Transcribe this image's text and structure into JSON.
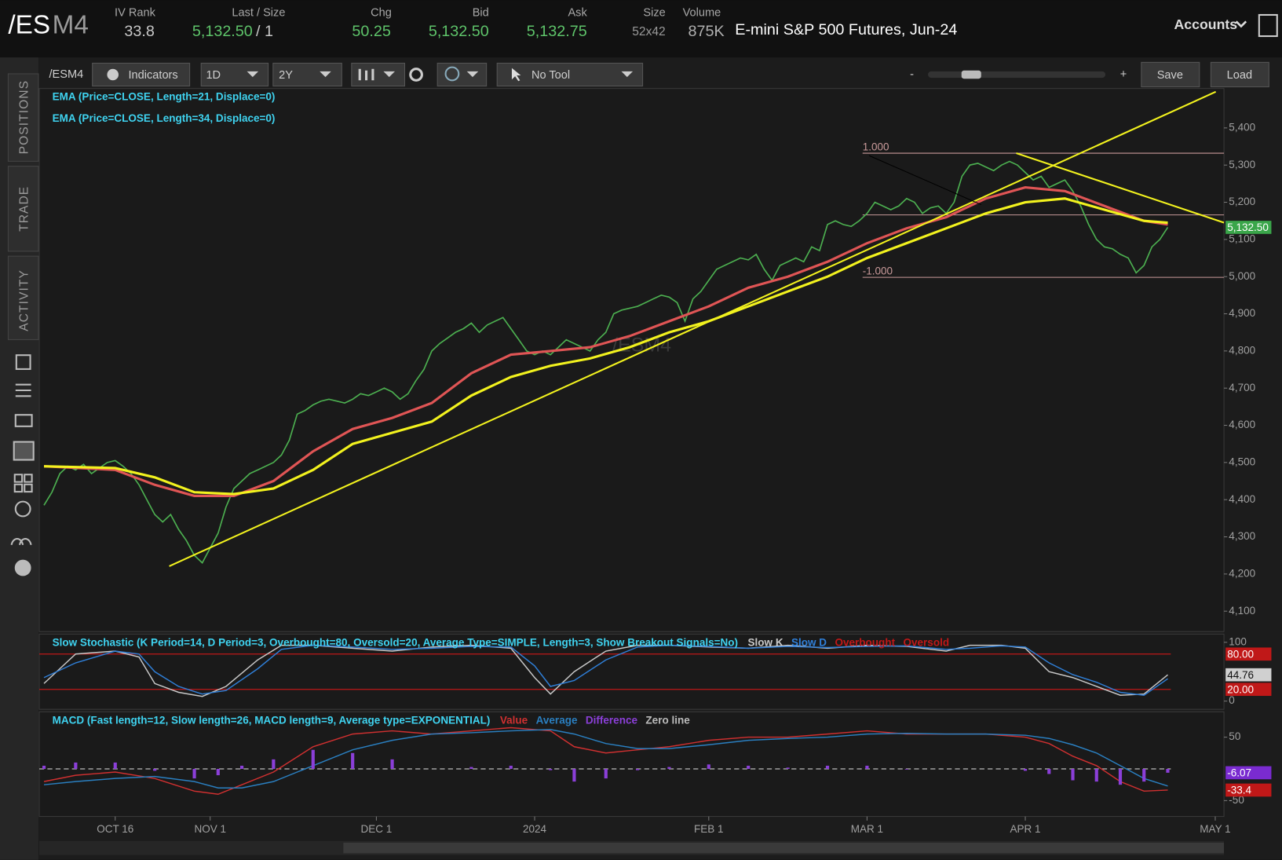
{
  "header": {
    "symbol_root": "/ES",
    "symbol_month": "M4",
    "fields": [
      {
        "label": "IV Rank",
        "value": "33.8"
      },
      {
        "label": "Last / Size",
        "value": "5,132.50",
        "extra": "/ 1"
      },
      {
        "label": "Chg",
        "value": "50.25"
      },
      {
        "label": "Bid",
        "value": "5,132.50"
      },
      {
        "label": "Ask",
        "value": "5,132.75"
      },
      {
        "label": "Size",
        "value": "52x42"
      },
      {
        "label": "Volume",
        "value": "875K"
      }
    ],
    "description": "E-mini S&P 500 Futures, Jun-24",
    "accounts": "Accounts"
  },
  "toolbar": {
    "symbol": "/ESM4",
    "indicators": "Indicators",
    "aggregation": "1D",
    "range": "2Y",
    "tool": "No Tool",
    "zoom_out": "-",
    "zoom_in": "+",
    "save": "Save",
    "load": "Load"
  },
  "side_tabs": [
    "POSITIONS",
    "TRADE",
    "ACTIVITY"
  ],
  "chart_data": [
    {
      "type": "line",
      "watermark": "/ESM4",
      "xlim": [
        -9.6,
        140.1
      ],
      "ylim": [
        4045,
        5506
      ],
      "yticks": [
        {
          "value": 4100,
          "label": "4,100"
        },
        {
          "value": 4200,
          "label": "4,200"
        },
        {
          "value": 4300,
          "label": "4,300"
        },
        {
          "value": 4400,
          "label": "4,400"
        },
        {
          "value": 4500,
          "label": "4,500"
        },
        {
          "value": 4600,
          "label": "4,600"
        },
        {
          "value": 4700,
          "label": "4,700"
        },
        {
          "value": 4800,
          "label": "4,800"
        },
        {
          "value": 4900,
          "label": "4,900"
        },
        {
          "value": 5000,
          "label": "5,000"
        },
        {
          "value": 5100,
          "label": "5,100"
        },
        {
          "value": 5200,
          "label": "5,200"
        },
        {
          "value": 5300,
          "label": "5,300"
        },
        {
          "value": 5400,
          "label": "5,400"
        }
      ],
      "fib": [
        {
          "value": 5332,
          "label": "1.000"
        },
        {
          "value": 5166
        },
        {
          "value": 4998,
          "label": "-1.000"
        }
      ],
      "series": [
        {
          "color": "#4caf50",
          "x": [
            -9,
            -8,
            -7,
            -6,
            -5,
            -4,
            -3,
            -2,
            -1,
            0,
            1,
            2,
            3,
            4,
            5,
            6,
            7,
            8,
            9,
            10,
            11,
            12,
            13,
            14,
            15,
            16,
            17,
            18,
            19,
            20,
            21,
            22,
            23,
            24,
            25,
            26,
            27,
            28,
            29,
            30,
            31,
            32,
            33,
            34,
            35,
            36,
            37,
            38,
            39,
            40,
            41,
            42,
            43,
            44,
            45,
            46,
            47,
            48,
            49,
            50,
            51,
            52,
            53,
            54,
            55,
            56,
            57,
            58,
            59,
            60,
            61,
            62,
            63,
            64,
            65,
            66,
            67,
            68,
            69,
            70,
            71,
            72,
            73,
            74,
            75,
            76,
            77,
            78,
            79,
            80,
            81,
            82,
            83,
            84,
            85,
            86,
            87,
            88,
            89,
            90,
            91,
            92,
            93,
            94,
            95,
            96,
            97,
            98,
            99,
            100,
            101,
            102,
            103,
            104,
            105,
            106,
            107,
            108,
            109,
            110,
            111,
            112,
            113,
            114,
            115,
            116,
            117,
            118,
            119,
            120,
            121,
            122,
            123,
            124,
            125,
            126,
            127,
            128,
            129,
            130,
            131,
            132,
            133
          ],
          "values": [
            4385,
            4420,
            4470,
            4490,
            4480,
            4495,
            4470,
            4485,
            4500,
            4505,
            4490,
            4470,
            4440,
            4400,
            4360,
            4340,
            4360,
            4320,
            4290,
            4250,
            4230,
            4270,
            4310,
            4380,
            4430,
            4450,
            4470,
            4480,
            4490,
            4500,
            4520,
            4560,
            4630,
            4640,
            4655,
            4665,
            4670,
            4665,
            4660,
            4670,
            4685,
            4680,
            4690,
            4700,
            4690,
            4670,
            4685,
            4720,
            4750,
            4800,
            4820,
            4835,
            4850,
            4860,
            4875,
            4850,
            4870,
            4880,
            4890,
            4860,
            4830,
            4800,
            4790,
            4800,
            4790,
            4810,
            4830,
            4820,
            4810,
            4800,
            4830,
            4850,
            4900,
            4910,
            4915,
            4920,
            4930,
            4940,
            4950,
            4945,
            4930,
            4880,
            4940,
            4960,
            4990,
            5020,
            5030,
            5040,
            5050,
            5045,
            5060,
            5020,
            4990,
            5030,
            5040,
            5050,
            5040,
            5080,
            5070,
            5140,
            5150,
            5140,
            5135,
            5150,
            5170,
            5200,
            5190,
            5180,
            5190,
            5210,
            5200,
            5170,
            5185,
            5190,
            5170,
            5200,
            5270,
            5300,
            5305,
            5295,
            5285,
            5300,
            5310,
            5300,
            5280,
            5260,
            5270,
            5240,
            5250,
            5260,
            5230,
            5190,
            5140,
            5100,
            5080,
            5075,
            5060,
            5050,
            5010,
            5030,
            5080,
            5100,
            5132.5
          ]
        },
        {
          "name": "EMA (Price=CLOSE, Length=21, Displace=0)",
          "color": "#e05555",
          "x": [
            -9,
            0,
            5,
            10,
            15,
            20,
            25,
            30,
            35,
            40,
            45,
            50,
            55,
            60,
            65,
            70,
            75,
            80,
            85,
            90,
            95,
            100,
            105,
            110,
            115,
            120,
            125,
            130,
            133
          ],
          "values": [
            4490,
            4480,
            4440,
            4410,
            4410,
            4450,
            4530,
            4590,
            4620,
            4660,
            4740,
            4790,
            4800,
            4810,
            4840,
            4880,
            4920,
            4970,
            5000,
            5040,
            5090,
            5130,
            5160,
            5210,
            5240,
            5230,
            5190,
            5150,
            5140
          ]
        },
        {
          "name": "EMA (Price=CLOSE, Length=34, Displace=0)",
          "color": "#f2f21e",
          "x": [
            -9,
            0,
            5,
            10,
            15,
            20,
            25,
            30,
            35,
            40,
            45,
            50,
            55,
            60,
            65,
            70,
            75,
            80,
            85,
            90,
            95,
            100,
            105,
            110,
            115,
            120,
            125,
            130,
            133
          ],
          "values": [
            4490,
            4485,
            4460,
            4420,
            4415,
            4430,
            4480,
            4550,
            4580,
            4610,
            4680,
            4730,
            4760,
            4780,
            4810,
            4850,
            4880,
            4920,
            4960,
            5000,
            5050,
            5090,
            5130,
            5170,
            5200,
            5210,
            5180,
            5150,
            5145
          ]
        }
      ],
      "readouts": [
        {
          "value": 5132.5,
          "label": "5,132.50",
          "color": "#3aa64a"
        }
      ]
    },
    {
      "type": "line",
      "title": "Slow Stochastic (K Period=14, D Period=3, Overbought=80, Oversold=20, Average Type=SIMPLE, Length=3, Show Breakout Signals=No)",
      "xlim": [
        -9.6,
        140.1
      ],
      "ylim": [
        -14,
        114
      ],
      "yticks": [
        0,
        100
      ],
      "series": [
        {
          "name": "Slow K",
          "color": "#c8c8c8",
          "x": [
            -9,
            -5,
            0,
            3,
            5,
            8,
            11,
            14,
            18,
            21,
            25,
            30,
            35,
            40,
            45,
            50,
            53,
            55,
            58,
            62,
            66,
            70,
            75,
            80,
            85,
            90,
            95,
            100,
            105,
            108,
            112,
            115,
            118,
            121,
            124,
            127,
            130,
            133
          ],
          "values": [
            30,
            80,
            85,
            75,
            30,
            15,
            8,
            25,
            70,
            95,
            95,
            90,
            85,
            92,
            95,
            90,
            40,
            12,
            50,
            85,
            95,
            95,
            92,
            90,
            95,
            90,
            95,
            93,
            85,
            95,
            95,
            90,
            50,
            40,
            25,
            10,
            12,
            44.76
          ]
        },
        {
          "name": "Slow D",
          "color": "#2f7fd8",
          "x": [
            -9,
            -5,
            0,
            3,
            5,
            8,
            11,
            14,
            18,
            21,
            25,
            30,
            35,
            40,
            45,
            50,
            53,
            55,
            58,
            62,
            66,
            70,
            75,
            80,
            85,
            90,
            95,
            100,
            105,
            108,
            112,
            115,
            118,
            121,
            124,
            127,
            130,
            133
          ],
          "values": [
            40,
            65,
            85,
            80,
            50,
            25,
            12,
            18,
            55,
            88,
            95,
            92,
            88,
            90,
            93,
            92,
            60,
            25,
            35,
            70,
            92,
            95,
            93,
            90,
            93,
            91,
            93,
            94,
            88,
            90,
            94,
            92,
            65,
            45,
            32,
            15,
            10,
            38
          ]
        }
      ],
      "levels": [
        {
          "name": "Overbought",
          "value": 80,
          "color": "#c01818"
        },
        {
          "name": "Oversold",
          "value": 20,
          "color": "#c01818"
        }
      ],
      "readouts": [
        {
          "value": 80,
          "label": "80.00",
          "color": "#c01818"
        },
        {
          "value": 44.76,
          "label": "44.76",
          "color": "#d0d0d0"
        },
        {
          "value": 20,
          "label": "20.00",
          "color": "#c01818"
        }
      ]
    },
    {
      "type": "line",
      "title": "MACD (Fast length=12, Slow length=26, MACD length=9, Average type=EXPONENTIAL)",
      "xlim": [
        -9.6,
        140.1
      ],
      "ylim": [
        -75,
        90
      ],
      "yticks": [
        -50,
        50
      ],
      "xticks": [
        {
          "value": 0,
          "label": "OCT 16"
        },
        {
          "value": 12,
          "label": "NOV 1"
        },
        {
          "value": 33,
          "label": "DEC 1"
        },
        {
          "value": 53,
          "label": "2024"
        },
        {
          "value": 75,
          "label": "FEB 1"
        },
        {
          "value": 95,
          "label": "MAR 1"
        },
        {
          "value": 115,
          "label": "APR 1"
        },
        {
          "value": 139,
          "label": "MAY 1"
        }
      ],
      "series": [
        {
          "name": "Value",
          "color": "#d03030",
          "x": [
            -9,
            -5,
            0,
            5,
            10,
            13,
            16,
            20,
            25,
            30,
            35,
            40,
            45,
            50,
            55,
            58,
            62,
            66,
            70,
            75,
            80,
            85,
            90,
            95,
            100,
            105,
            110,
            115,
            118,
            121,
            124,
            127,
            130,
            133
          ],
          "values": [
            -20,
            -10,
            -5,
            -15,
            -35,
            -40,
            -25,
            -5,
            35,
            55,
            60,
            55,
            60,
            65,
            60,
            35,
            25,
            30,
            35,
            45,
            50,
            50,
            55,
            60,
            55,
            55,
            55,
            50,
            40,
            20,
            5,
            -20,
            -35,
            -33.4
          ]
        },
        {
          "name": "Average",
          "color": "#2a7fc0",
          "x": [
            -9,
            -5,
            0,
            5,
            10,
            13,
            16,
            20,
            25,
            30,
            35,
            40,
            45,
            50,
            55,
            58,
            62,
            66,
            70,
            75,
            80,
            85,
            90,
            95,
            100,
            105,
            110,
            115,
            118,
            121,
            124,
            127,
            130,
            133
          ],
          "values": [
            -25,
            -20,
            -15,
            -12,
            -20,
            -30,
            -30,
            -20,
            5,
            30,
            45,
            55,
            57,
            60,
            62,
            55,
            40,
            32,
            32,
            38,
            45,
            48,
            50,
            55,
            56,
            55,
            55,
            53,
            48,
            38,
            25,
            5,
            -15,
            -27
          ]
        },
        {
          "name": "Difference",
          "type": "histogram",
          "color": "#8b3fd8",
          "x": [
            -9,
            -5,
            0,
            5,
            10,
            13,
            16,
            20,
            25,
            30,
            35,
            40,
            45,
            50,
            55,
            58,
            62,
            66,
            70,
            75,
            80,
            85,
            90,
            95,
            100,
            105,
            110,
            115,
            118,
            121,
            124,
            127,
            130,
            133
          ],
          "values": [
            5,
            10,
            10,
            -3,
            -15,
            -10,
            5,
            15,
            30,
            25,
            15,
            0,
            3,
            5,
            -2,
            -20,
            -15,
            -2,
            3,
            7,
            5,
            2,
            5,
            5,
            -1,
            0,
            0,
            -3,
            -8,
            -18,
            -20,
            -25,
            -20,
            -6.07
          ]
        }
      ],
      "levels": [
        {
          "name": "Zero line",
          "value": 0,
          "color": "#bbbbbb",
          "dashed": true
        }
      ],
      "readouts": [
        {
          "value": -6.07,
          "label": "-6.07",
          "color": "#7a2bd0"
        },
        {
          "value": -33.4,
          "label": "-33.4",
          "color": "#c01818"
        }
      ]
    }
  ]
}
